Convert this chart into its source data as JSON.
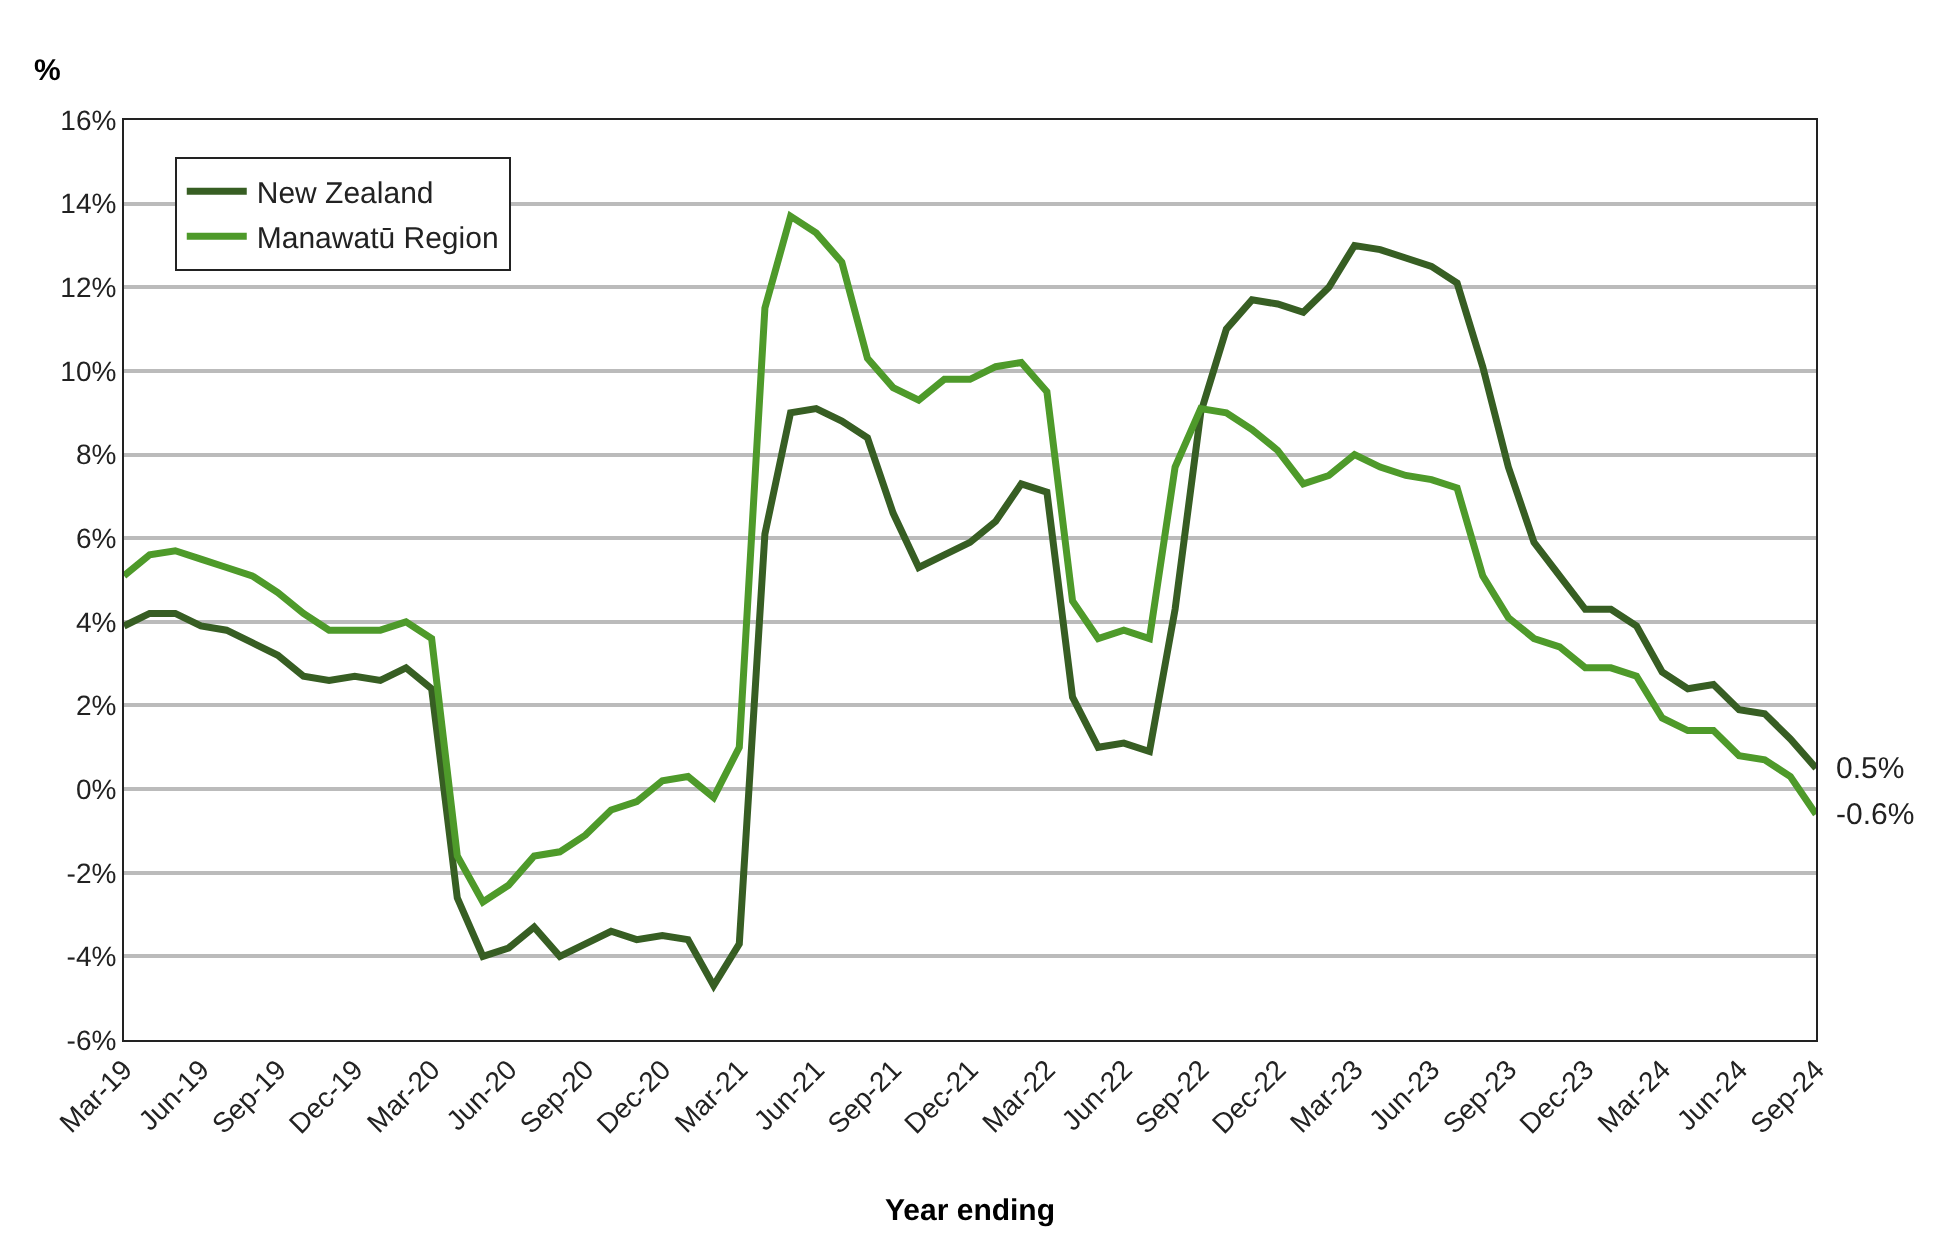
{
  "chart_data": {
    "type": "line",
    "xlabel": "Year ending",
    "ylabel": "%",
    "categories": [
      "Mar-19",
      null,
      null,
      "Jun-19",
      null,
      null,
      "Sep-19",
      null,
      null,
      "Dec-19",
      null,
      null,
      "Mar-20",
      null,
      null,
      "Jun-20",
      null,
      null,
      "Sep-20",
      null,
      null,
      "Dec-20",
      null,
      null,
      "Mar-21",
      null,
      null,
      "Jun-21",
      null,
      null,
      "Sep-21",
      null,
      null,
      "Dec-21",
      null,
      null,
      "Mar-22",
      null,
      null,
      "Jun-22",
      null,
      null,
      "Sep-22",
      null,
      null,
      "Dec-22",
      null,
      null,
      "Mar-23",
      null,
      null,
      "Jun-23",
      null,
      null,
      "Sep-23",
      null,
      null,
      "Dec-23",
      null,
      null,
      "Mar-24",
      null,
      null,
      "Jun-24",
      null,
      null,
      "Sep-24"
    ],
    "series": [
      {
        "name": "New Zealand",
        "color": "#375e23",
        "values": [
          3.9,
          4.2,
          4.2,
          3.9,
          3.8,
          3.5,
          3.2,
          2.7,
          2.6,
          2.7,
          2.6,
          2.9,
          2.4,
          -2.6,
          -4.0,
          -3.8,
          -3.3,
          -4.0,
          -3.7,
          -3.4,
          -3.6,
          -3.5,
          -3.6,
          -4.7,
          -3.7,
          6.1,
          9.0,
          9.1,
          8.8,
          8.4,
          6.6,
          5.3,
          5.6,
          5.9,
          6.4,
          7.3,
          7.1,
          2.2,
          1.0,
          1.1,
          0.9,
          4.3,
          9.0,
          11.0,
          11.7,
          11.6,
          11.4,
          12.0,
          13.0,
          12.9,
          12.7,
          12.5,
          12.1,
          10.1,
          7.7,
          5.9,
          5.1,
          4.3,
          4.3,
          3.9,
          2.8,
          2.4,
          2.5,
          1.9,
          1.8,
          1.2,
          0.5
        ]
      },
      {
        "name": "Manawatū Region",
        "color": "#4e9a2a",
        "values": [
          5.1,
          5.6,
          5.7,
          5.5,
          5.3,
          5.1,
          4.7,
          4.2,
          3.8,
          3.8,
          3.8,
          4.0,
          3.6,
          -1.6,
          -2.7,
          -2.3,
          -1.6,
          -1.5,
          -1.1,
          -0.5,
          -0.3,
          0.2,
          0.3,
          -0.2,
          1.0,
          11.5,
          13.7,
          13.3,
          12.6,
          10.3,
          9.6,
          9.3,
          9.8,
          9.8,
          10.1,
          10.2,
          9.5,
          4.5,
          3.6,
          3.8,
          3.6,
          7.7,
          9.1,
          9.0,
          8.6,
          8.1,
          7.3,
          7.5,
          8.0,
          7.7,
          7.5,
          7.4,
          7.2,
          5.1,
          4.1,
          3.6,
          3.4,
          2.9,
          2.9,
          2.7,
          1.7,
          1.4,
          1.4,
          0.8,
          0.7,
          0.3,
          -0.6
        ]
      }
    ],
    "ylim": [
      -6,
      16
    ],
    "yticks": [
      {
        "value": -6,
        "label": "-6%"
      },
      {
        "value": -4,
        "label": "-4%"
      },
      {
        "value": -2,
        "label": "-2%"
      },
      {
        "value": 0,
        "label": "0%"
      },
      {
        "value": 2,
        "label": "2%"
      },
      {
        "value": 4,
        "label": "4%"
      },
      {
        "value": 6,
        "label": "6%"
      },
      {
        "value": 8,
        "label": "8%"
      },
      {
        "value": 10,
        "label": "10%"
      },
      {
        "value": 12,
        "label": "12%"
      },
      {
        "value": 14,
        "label": "14%"
      },
      {
        "value": 16,
        "label": "16%"
      }
    ],
    "annotations": [
      {
        "text": "0.5%",
        "x": "Sep-24",
        "y": 0.5
      },
      {
        "text": "-0.6%",
        "x": "Sep-24",
        "y": -0.6
      }
    ],
    "grid": "y",
    "legend": "top left",
    "marker": "none",
    "line_style": "solid"
  }
}
